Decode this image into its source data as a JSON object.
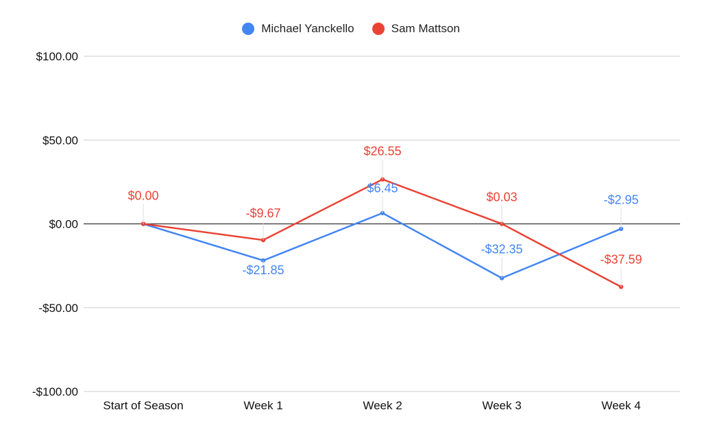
{
  "chart_data": {
    "type": "line",
    "categories": [
      "Start of Season",
      "Week 1",
      "Week 2",
      "Week 3",
      "Week 4"
    ],
    "series": [
      {
        "name": "Michael Yanckello",
        "color": "#4285f4",
        "values": [
          0.0,
          -21.85,
          6.45,
          -32.35,
          -2.95
        ],
        "labels": [
          "",
          "-$21.85",
          "$6.45",
          "-$32.35",
          "-$2.95"
        ]
      },
      {
        "name": "Sam Mattson",
        "color": "#ea4335",
        "values": [
          0.0,
          -9.67,
          26.55,
          0.03,
          -37.59
        ],
        "labels": [
          "$0.00",
          "-$9.67",
          "$26.55",
          "$0.03",
          "-$37.59"
        ]
      }
    ],
    "ylim": [
      -100,
      100
    ],
    "yticks": [
      100,
      50,
      0,
      -50,
      -100
    ],
    "ytick_labels": [
      "$100.00",
      "$50.00",
      "$0.00",
      "-$50.00",
      "-$100.00"
    ],
    "grid": true,
    "legend_position": "top"
  }
}
